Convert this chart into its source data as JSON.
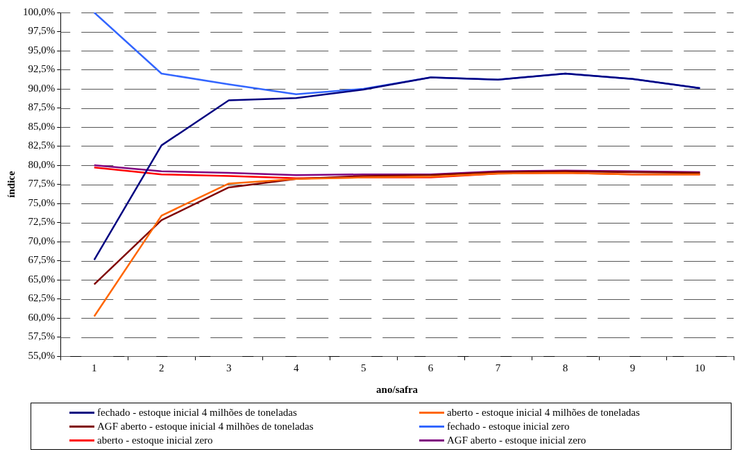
{
  "chart_data": {
    "type": "line",
    "xlabel": "ano/safra",
    "ylabel": "índice",
    "categories": [
      "1",
      "2",
      "3",
      "4",
      "5",
      "6",
      "7",
      "8",
      "9",
      "10"
    ],
    "series": [
      {
        "name": "fechado - estoque inicial 4 milhões de toneladas",
        "color": "#000080",
        "values": [
          67.6,
          82.6,
          88.5,
          88.8,
          89.9,
          91.5,
          91.2,
          92.0,
          91.3,
          90.1
        ]
      },
      {
        "name": "aberto - estoque inicial 4 milhões de toneladas",
        "color": "#ff6600",
        "values": [
          60.2,
          73.4,
          77.6,
          78.2,
          78.4,
          78.5,
          78.9,
          79.0,
          78.8,
          78.8
        ]
      },
      {
        "name": "AGF aberto - estoque inicial 4 milhões de toneladas",
        "color": "#800000",
        "values": [
          64.4,
          72.8,
          77.1,
          78.2,
          78.6,
          78.7,
          79.1,
          79.2,
          79.1,
          79.0
        ]
      },
      {
        "name": "fechado - estoque inicial zero",
        "color": "#3366ff",
        "values": [
          100.0,
          92.0,
          90.6,
          89.3,
          90.0,
          91.5,
          91.2,
          92.0,
          91.3,
          90.1
        ]
      },
      {
        "name": "aberto - estoque inicial zero",
        "color": "#ff0000",
        "values": [
          79.7,
          78.8,
          78.6,
          78.3,
          78.4,
          78.4,
          78.9,
          79.0,
          78.8,
          78.8
        ]
      },
      {
        "name": "AGF aberto - estoque inicial zero",
        "color": "#800080",
        "values": [
          80.0,
          79.2,
          79.0,
          78.7,
          78.8,
          78.8,
          79.2,
          79.3,
          79.2,
          79.1
        ]
      }
    ],
    "ylim": [
      55,
      100
    ],
    "yticks": [
      {
        "value": 55,
        "label": "55,0%"
      },
      {
        "value": 57.5,
        "label": "57,5%"
      },
      {
        "value": 60,
        "label": "60,0%"
      },
      {
        "value": 62.5,
        "label": "62,5%"
      },
      {
        "value": 65,
        "label": "65,0%"
      },
      {
        "value": 67.5,
        "label": "67,5%"
      },
      {
        "value": 70,
        "label": "70,0%"
      },
      {
        "value": 72.5,
        "label": "72,5%"
      },
      {
        "value": 75,
        "label": "75,0%"
      },
      {
        "value": 77.5,
        "label": "77,5%"
      },
      {
        "value": 80,
        "label": "80,0%"
      },
      {
        "value": 82.5,
        "label": "82,5%"
      },
      {
        "value": 85,
        "label": "85,0%"
      },
      {
        "value": 87.5,
        "label": "87,5%"
      },
      {
        "value": 90,
        "label": "90,0%"
      },
      {
        "value": 92.5,
        "label": "92,5%"
      },
      {
        "value": 95,
        "label": "95,0%"
      },
      {
        "value": 97.5,
        "label": "97,5%"
      },
      {
        "value": 100,
        "label": "100,0%"
      }
    ],
    "grid": "y",
    "legend": "bottom",
    "marker": "none",
    "line_style": "solid"
  }
}
